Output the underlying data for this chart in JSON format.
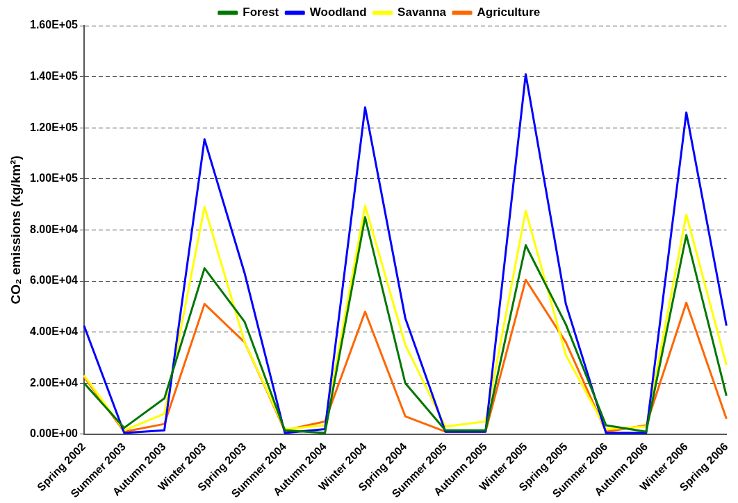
{
  "chart_data": {
    "type": "line",
    "ylabel": "CO₂ emissions (kg/km²)",
    "categories": [
      "Spring 2002",
      "Summer 2003",
      "Autumn 2003",
      "Winter 2003",
      "Spring 2003",
      "Summer 2004",
      "Autumn 2004",
      "Winter 2004",
      "Spring 2004",
      "Summer 2005",
      "Autumn 2005",
      "Winter 2005",
      "Spring 2005",
      "Summer 2006",
      "Autumn 2006",
      "Winter 2006",
      "Spring 2006"
    ],
    "series": [
      {
        "name": "Forest",
        "color": "#007700",
        "values": [
          20000,
          2500,
          14000,
          65000,
          44000,
          1500,
          500,
          85000,
          20000,
          1500,
          1500,
          74000,
          43000,
          3500,
          1000,
          78000,
          15000
        ]
      },
      {
        "name": "Woodland",
        "color": "#0000ff",
        "values": [
          42500,
          500,
          1500,
          115500,
          63000,
          500,
          2000,
          128000,
          45500,
          1000,
          1000,
          141000,
          51000,
          500,
          500,
          126000,
          42500
        ]
      },
      {
        "name": "Savanna",
        "color": "#ffff00",
        "values": [
          23000,
          1500,
          8000,
          89000,
          36000,
          2000,
          3500,
          89500,
          35000,
          3000,
          5000,
          87500,
          31000,
          2000,
          3000,
          86000,
          27000
        ]
      },
      {
        "name": "Agriculture",
        "color": "#ff6600",
        "values": [
          22500,
          1000,
          4000,
          51000,
          36000,
          1500,
          5000,
          48000,
          7000,
          1000,
          1000,
          60500,
          36000,
          1000,
          3500,
          51500,
          6000
        ]
      }
    ],
    "ylim": [
      0,
      160000
    ],
    "yticks": [
      {
        "value": 0,
        "label": "0.00E+00"
      },
      {
        "value": 20000,
        "label": "2.00E+04"
      },
      {
        "value": 40000,
        "label": "4.00E+04"
      },
      {
        "value": 60000,
        "label": "6.00E+04"
      },
      {
        "value": 80000,
        "label": "8.00E+04"
      },
      {
        "value": 100000,
        "label": "1.00E+05"
      },
      {
        "value": 120000,
        "label": "1.20E+05"
      },
      {
        "value": 140000,
        "label": "1.40E+05"
      },
      {
        "value": 160000,
        "label": "1.60E+05"
      }
    ],
    "grid": "y",
    "legend": "top",
    "marker": "none",
    "line_style": "solid"
  }
}
